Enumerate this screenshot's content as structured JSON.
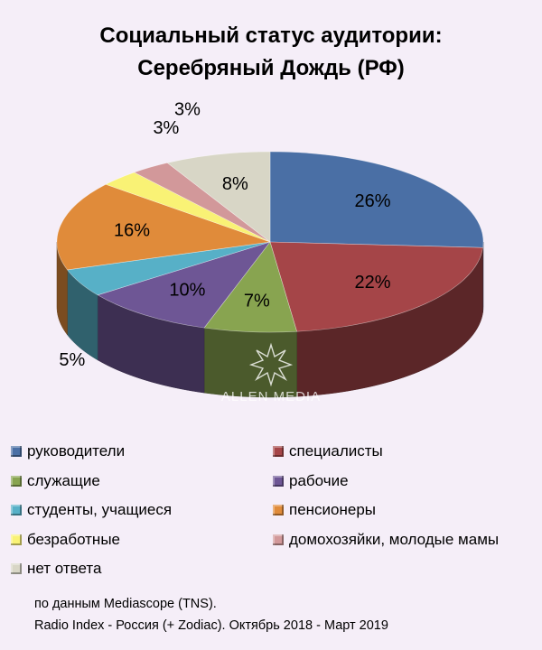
{
  "chart_data": {
    "type": "pie",
    "title": "Социальный статус аудитории:",
    "subtitle": "Серебряный Дождь (РФ)",
    "categories": [
      "руководители",
      "специалисты",
      "служащие",
      "рабочие",
      "студенты, учащиеся",
      "пенсионеры",
      "безработные",
      "домохозяйки, молодые мамы",
      "нет ответа"
    ],
    "values": [
      26,
      22,
      7,
      10,
      5,
      16,
      3,
      3,
      8
    ],
    "labels": [
      "26%",
      "22%",
      "7%",
      "10%",
      "5%",
      "16%",
      "3%",
      "3%",
      "8%"
    ],
    "colors": [
      "#4a6fa5",
      "#a54548",
      "#88a450",
      "#6e5695",
      "#57b0c7",
      "#e08b3a",
      "#f9f275",
      "#d2989a",
      "#d8d6c6"
    ],
    "legend_position": "bottom"
  },
  "watermark": "ALLEN MEDIA",
  "source": {
    "line1": "по данным Mediascope (TNS).",
    "line2": "Radio Index - Россия (+ Zodiac). Октябрь 2018 - Март 2019"
  }
}
